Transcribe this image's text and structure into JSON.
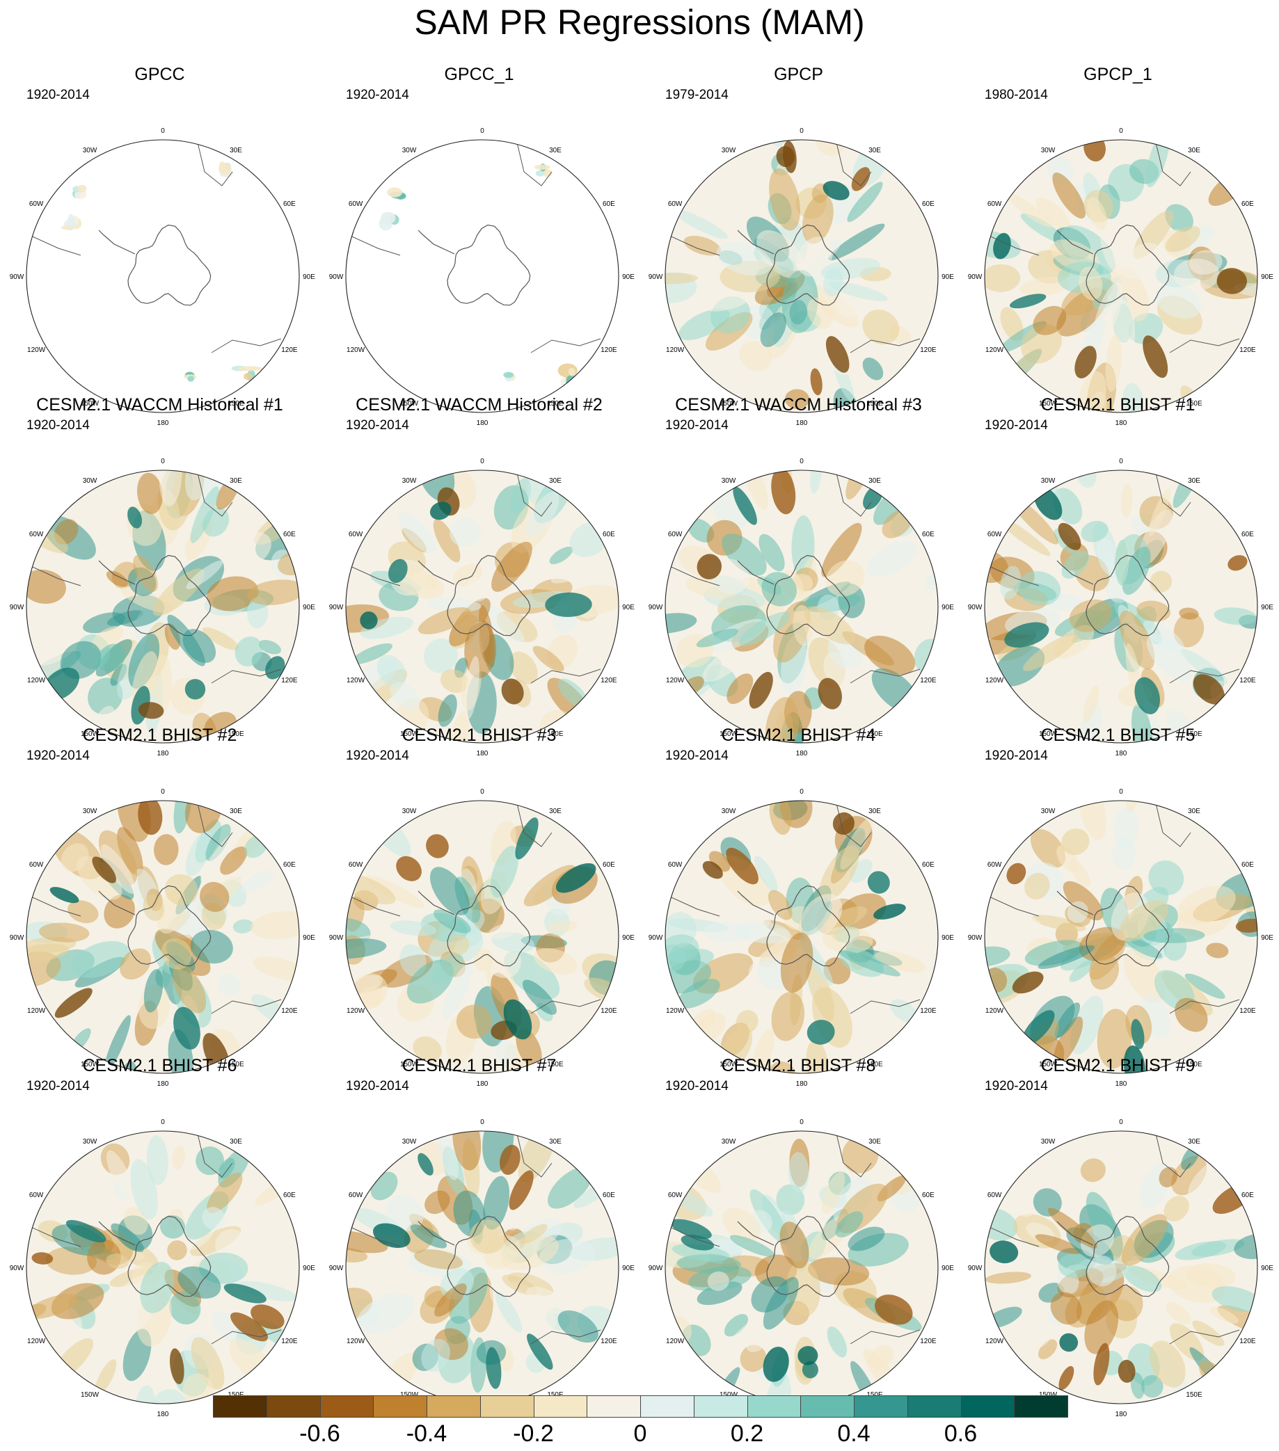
{
  "figure": {
    "title": "SAM PR Regressions (MAM)"
  },
  "longitude_labels": [
    "0",
    "30E",
    "60E",
    "90E",
    "120E",
    "150E",
    "180",
    "150W",
    "120W",
    "90W",
    "60W",
    "30W"
  ],
  "panels": [
    {
      "title": "GPCC",
      "period": "1920-2014",
      "coverage": "land-only"
    },
    {
      "title": "GPCC_1",
      "period": "1920-2014",
      "coverage": "land-only"
    },
    {
      "title": "GPCP",
      "period": "1979-2014",
      "coverage": "global"
    },
    {
      "title": "GPCP_1",
      "period": "1980-2014",
      "coverage": "global"
    },
    {
      "title": "CESM2.1 WACCM Historical #1",
      "period": "1920-2014",
      "coverage": "global"
    },
    {
      "title": "CESM2.1 WACCM Historical #2",
      "period": "1920-2014",
      "coverage": "global"
    },
    {
      "title": "CESM2.1 WACCM Historical #3",
      "period": "1920-2014",
      "coverage": "global"
    },
    {
      "title": "CESM2.1 BHIST #1",
      "period": "1920-2014",
      "coverage": "global"
    },
    {
      "title": "CESM2.1 BHIST #2",
      "period": "1920-2014",
      "coverage": "global"
    },
    {
      "title": "CESM2.1 BHIST #3",
      "period": "1920-2014",
      "coverage": "global"
    },
    {
      "title": "CESM2.1 BHIST #4",
      "period": "1920-2014",
      "coverage": "global"
    },
    {
      "title": "CESM2.1 BHIST #5",
      "period": "1920-2014",
      "coverage": "global"
    },
    {
      "title": "CESM2.1 BHIST #6",
      "period": "1920-2014",
      "coverage": "global"
    },
    {
      "title": "CESM2.1 BHIST #7",
      "period": "1920-2014",
      "coverage": "global"
    },
    {
      "title": "CESM2.1 BHIST #8",
      "period": "1920-2014",
      "coverage": "global"
    },
    {
      "title": "CESM2.1 BHIST #9",
      "period": "1920-2014",
      "coverage": "global"
    }
  ],
  "colorbar": {
    "colors": [
      "#543005",
      "#7b4a0e",
      "#9c5c18",
      "#bf812d",
      "#d5a95e",
      "#e8cf97",
      "#f5e8c6",
      "#f5f1e6",
      "#e3f0ef",
      "#c7eae5",
      "#98d8cc",
      "#66bdaf",
      "#35978f",
      "#1a7c73",
      "#01665e",
      "#003c30"
    ],
    "tick_labels": [
      "-0.6",
      "-0.4",
      "-0.2",
      "0",
      "0.2",
      "0.4",
      "0.6"
    ],
    "tick_values": [
      -0.6,
      -0.4,
      -0.2,
      0,
      0.2,
      0.4,
      0.6
    ],
    "range": [
      -0.8,
      0.8
    ]
  }
}
